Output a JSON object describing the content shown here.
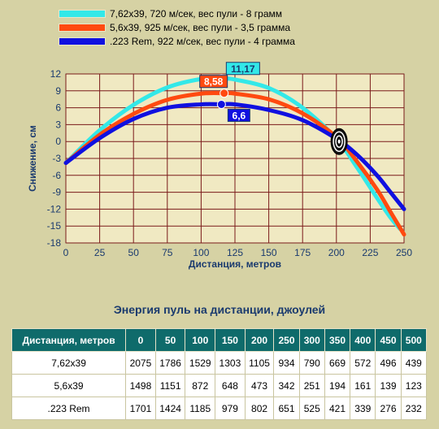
{
  "legend": [
    {
      "label": "7,62x39, 720 м/сек, вес пули - 8 грамм",
      "color": "#33e8e8"
    },
    {
      "label": "5,6x39, 925 м/сек, вес пули - 3,5 грамма",
      "color": "#ff4a10"
    },
    {
      "label": ".223 Rem, 922 м/сек, вес пули - 4 грамма",
      "color": "#1010e0"
    }
  ],
  "chart_data": {
    "type": "line",
    "title": "",
    "xlabel": "Дистанция, метров",
    "ylabel": "Снижение, см",
    "xlim": [
      0,
      250
    ],
    "ylim": [
      -18,
      12
    ],
    "xticks": [
      "0",
      "25",
      "50",
      "75",
      "100",
      "125",
      "150",
      "175",
      "200",
      "225",
      "250"
    ],
    "yticks": [
      "12",
      "9",
      "6",
      "3",
      "0",
      "-3",
      "-6",
      "-9",
      "-12",
      "-15",
      "-18"
    ],
    "grid": true,
    "series": [
      {
        "name": "7,62x39, 720 м/сек, вес пули - 8 грамм",
        "color": "#33e8e8",
        "points": [
          [
            0,
            -3.8
          ],
          [
            25,
            2.0
          ],
          [
            50,
            6.5
          ],
          [
            75,
            9.6
          ],
          [
            100,
            11.1
          ],
          [
            115,
            11.17
          ],
          [
            125,
            11.0
          ],
          [
            150,
            9.5
          ],
          [
            175,
            6.0
          ],
          [
            200,
            0.5
          ],
          [
            215,
            -4.5
          ],
          [
            230,
            -10.0
          ],
          [
            240,
            -13.5
          ],
          [
            247,
            -15.5
          ]
        ],
        "peak": {
          "x": 115,
          "y": 11.17,
          "label": "11,17"
        }
      },
      {
        "name": "5,6x39, 925 м/сек, вес пули - 3,5 грамма",
        "color": "#ff4a10",
        "points": [
          [
            0,
            -3.8
          ],
          [
            25,
            1.2
          ],
          [
            50,
            4.9
          ],
          [
            75,
            7.4
          ],
          [
            100,
            8.5
          ],
          [
            117,
            8.58
          ],
          [
            125,
            8.5
          ],
          [
            150,
            7.5
          ],
          [
            175,
            5.0
          ],
          [
            200,
            0.8
          ],
          [
            215,
            -3.5
          ],
          [
            230,
            -8.5
          ],
          [
            240,
            -12.5
          ],
          [
            250,
            -16.5
          ]
        ],
        "peak": {
          "x": 117,
          "y": 8.58,
          "label": "8,58"
        }
      },
      {
        "name": ".223 Rem, 922 м/сек, вес пули - 4 грамма",
        "color": "#1010e0",
        "points": [
          [
            0,
            -3.8
          ],
          [
            25,
            0.6
          ],
          [
            50,
            4.0
          ],
          [
            75,
            6.0
          ],
          [
            100,
            6.6
          ],
          [
            115,
            6.6
          ],
          [
            125,
            6.6
          ],
          [
            150,
            5.6
          ],
          [
            175,
            3.8
          ],
          [
            200,
            0.5
          ],
          [
            215,
            -2.3
          ],
          [
            230,
            -6.0
          ],
          [
            240,
            -9.0
          ],
          [
            250,
            -12.0
          ]
        ],
        "peak": {
          "x": 115,
          "y": 6.6,
          "label": "6,6"
        }
      }
    ],
    "target": {
      "x": 202,
      "y": 0
    },
    "colors": {
      "background": "#d6d2a4",
      "plot_area": "#f0e9c2",
      "grid": "#7a1a1a",
      "axis_text": "#1a3a6e"
    }
  },
  "table": {
    "title": "Энергия пуль на дистанции, джоулей",
    "header": [
      "Дистанция, метров",
      "0",
      "50",
      "100",
      "150",
      "200",
      "250",
      "300",
      "350",
      "400",
      "450",
      "500"
    ],
    "rows": [
      [
        "7,62x39",
        "2075",
        "1786",
        "1529",
        "1303",
        "1105",
        "934",
        "790",
        "669",
        "572",
        "496",
        "439"
      ],
      [
        "5,6x39",
        "1498",
        "1151",
        "872",
        "648",
        "473",
        "342",
        "251",
        "194",
        "161",
        "139",
        "123"
      ],
      [
        ".223 Rem",
        "1701",
        "1424",
        "1185",
        "979",
        "802",
        "651",
        "525",
        "421",
        "339",
        "276",
        "232"
      ]
    ]
  }
}
